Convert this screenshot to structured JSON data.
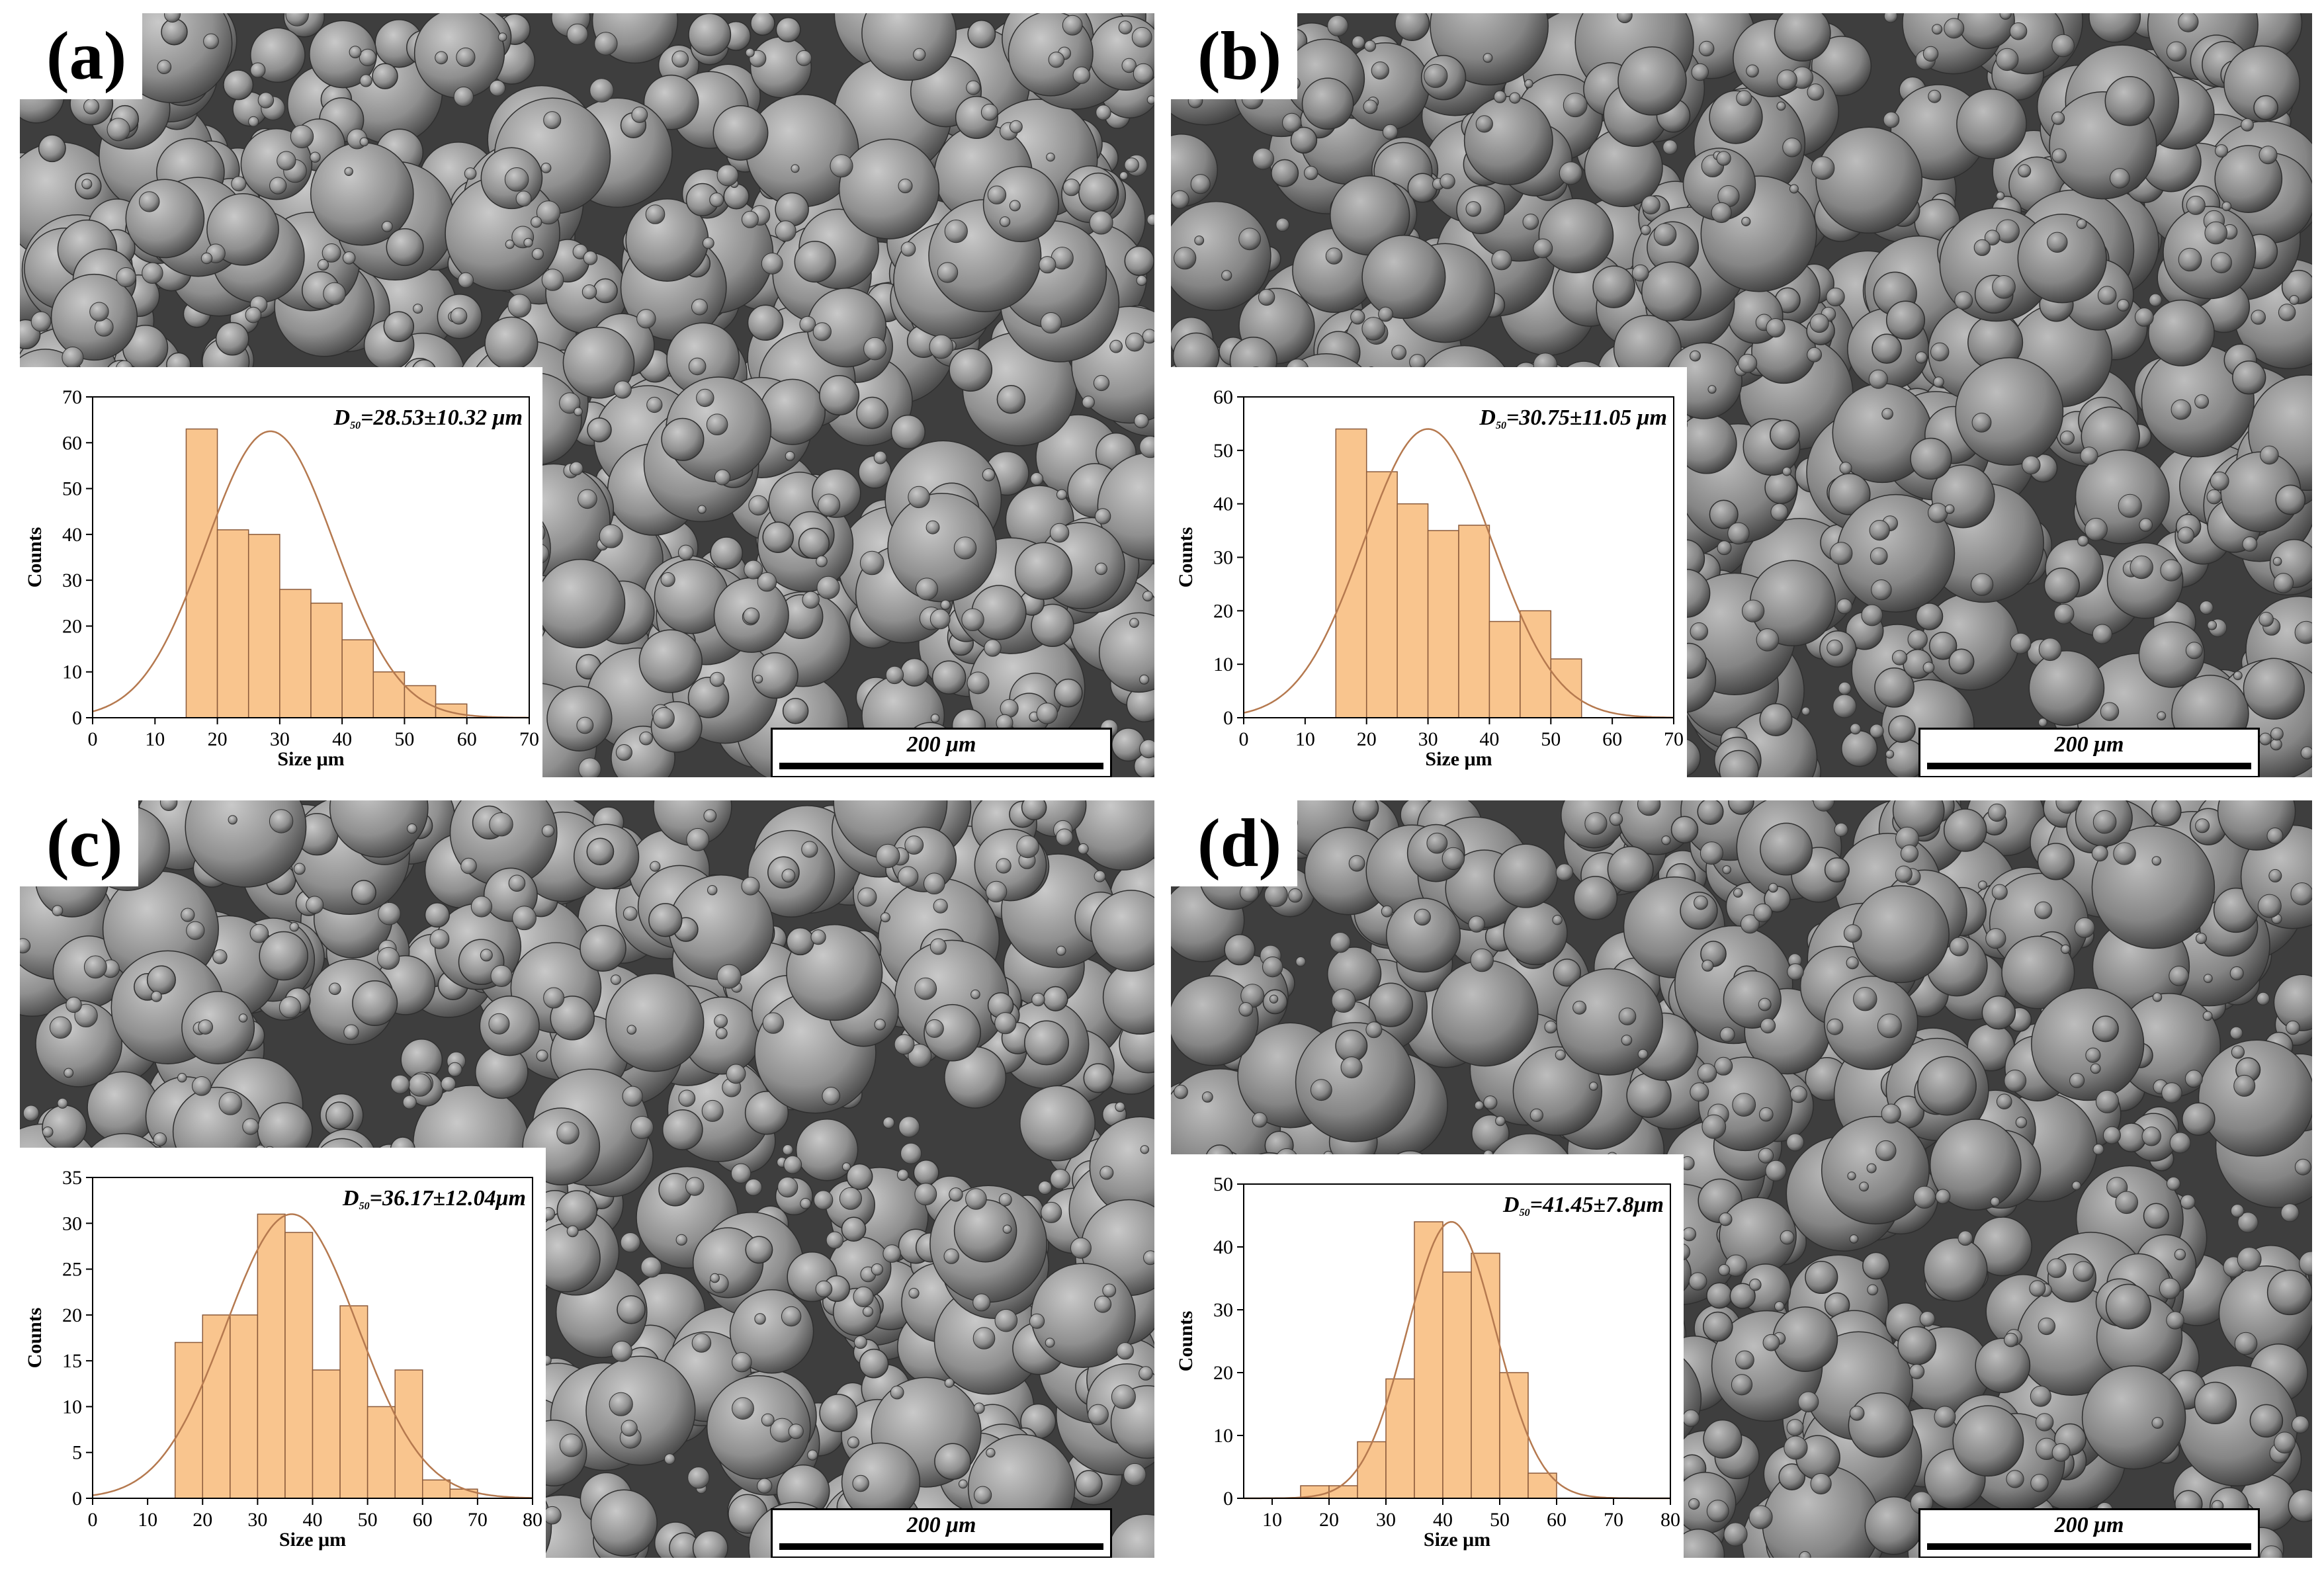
{
  "colors": {
    "bar_fill": "#f9c58e",
    "bar_stroke": "#8a5a3b",
    "curve": "#b5794f",
    "sem_bg": "#3e3e3e"
  },
  "panels": [
    {
      "label": "(a)",
      "scale_bar": "200 μm",
      "chart_data": {
        "type": "bar",
        "title": "D₅₀=28.53±10.32 μm",
        "stat_main": "D",
        "stat_sub": "50",
        "stat_rest": "=28.53±10.32 μm",
        "xlabel": "Size  μm",
        "ylabel": "Counts",
        "xlim": [
          0,
          70
        ],
        "ylim": [
          0,
          70
        ],
        "xticks": [
          0,
          10,
          20,
          30,
          40,
          50,
          60,
          70
        ],
        "yticks": [
          0,
          10,
          20,
          30,
          40,
          50,
          60,
          70
        ],
        "bin_width": 5,
        "bins": [
          15,
          20,
          25,
          30,
          35,
          40,
          45,
          50,
          55
        ],
        "values": [
          63,
          41,
          40,
          28,
          25,
          17,
          10,
          7,
          3
        ],
        "fit": {
          "type": "normal",
          "mean": 28.5,
          "sd": 10.3,
          "peak": 62.5
        }
      }
    },
    {
      "label": "(b)",
      "scale_bar": "200 μm",
      "chart_data": {
        "type": "bar",
        "title": "D₅₀=30.75±11.05 μm",
        "stat_main": "D",
        "stat_sub": "50",
        "stat_rest": "=30.75±11.05 μm",
        "xlabel": "Size  μm",
        "ylabel": "Counts",
        "xlim": [
          0,
          70
        ],
        "ylim": [
          0,
          60
        ],
        "xticks": [
          0,
          10,
          20,
          30,
          40,
          50,
          60,
          70
        ],
        "yticks": [
          0,
          10,
          20,
          30,
          40,
          50,
          60
        ],
        "bin_width": 5,
        "bins": [
          15,
          20,
          25,
          30,
          35,
          40,
          45,
          50
        ],
        "values": [
          54,
          46,
          40,
          35,
          36,
          18,
          20,
          11
        ],
        "fit": {
          "type": "normal",
          "mean": 30.0,
          "sd": 10.5,
          "peak": 54
        }
      }
    },
    {
      "label": "(c)",
      "scale_bar": "200 μm",
      "chart_data": {
        "type": "bar",
        "title": "D₅₀=36.17±12.04 μm",
        "stat_main": "D",
        "stat_sub": "50",
        "stat_rest": "=36.17±12.04μm",
        "xlabel": "Size μm",
        "ylabel": "Counts",
        "xlim": [
          0,
          80
        ],
        "ylim": [
          0,
          35
        ],
        "xticks": [
          0,
          10,
          20,
          30,
          40,
          50,
          60,
          70,
          80
        ],
        "yticks": [
          0,
          5,
          10,
          15,
          20,
          25,
          30,
          35
        ],
        "bin_width": 5,
        "bins": [
          15,
          20,
          25,
          30,
          35,
          40,
          45,
          50,
          55,
          60,
          65
        ],
        "values": [
          17,
          20,
          20,
          31,
          29,
          14,
          21,
          10,
          14,
          2,
          1
        ],
        "fit": {
          "type": "normal",
          "mean": 36.2,
          "sd": 12.0,
          "peak": 31
        }
      }
    },
    {
      "label": "(d)",
      "scale_bar": "200 μm",
      "chart_data": {
        "type": "bar",
        "title": "D₅₀=41.45±7.8 μm",
        "stat_main": "D",
        "stat_sub": "50",
        "stat_rest": "=41.45±7.8μm",
        "xlabel": "Size μm",
        "ylabel": "Counts",
        "xlim": [
          5,
          80
        ],
        "ylim": [
          0,
          50
        ],
        "xticks": [
          10,
          20,
          30,
          40,
          50,
          60,
          70,
          80
        ],
        "yticks": [
          0,
          10,
          20,
          30,
          40,
          50
        ],
        "bin_width": 5,
        "bins": [
          15,
          20,
          25,
          30,
          35,
          40,
          45,
          50,
          55
        ],
        "values": [
          2,
          2,
          9,
          19,
          44,
          36,
          39,
          20,
          4
        ],
        "fit": {
          "type": "normal",
          "mean": 41.5,
          "sd": 7.8,
          "peak": 44
        }
      }
    }
  ]
}
